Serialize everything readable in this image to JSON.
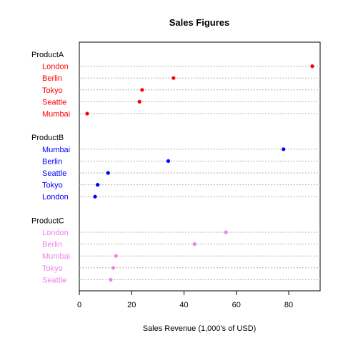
{
  "chart_data": {
    "type": "scatter",
    "subtype": "dotchart",
    "title": "Sales Figures",
    "xlabel": "Sales Revenue (1,000's of USD)",
    "ylabel": "",
    "xlim": [
      0,
      92
    ],
    "xticks": [
      0,
      20,
      40,
      60,
      80
    ],
    "grid": "dotted-horizontal",
    "groups": [
      {
        "name": "ProductA",
        "color": "#ff0000",
        "points": [
          {
            "label": "London",
            "value": 89
          },
          {
            "label": "Berlin",
            "value": 36
          },
          {
            "label": "Tokyo",
            "value": 24
          },
          {
            "label": "Seattle",
            "value": 23
          },
          {
            "label": "Mumbai",
            "value": 3
          }
        ]
      },
      {
        "name": "ProductB",
        "color": "#0000ff",
        "points": [
          {
            "label": "Mumbai",
            "value": 78
          },
          {
            "label": "Berlin",
            "value": 34
          },
          {
            "label": "Seattle",
            "value": 11
          },
          {
            "label": "Tokyo",
            "value": 7
          },
          {
            "label": "London",
            "value": 6
          }
        ]
      },
      {
        "name": "ProductC",
        "color": "#ee82ee",
        "points": [
          {
            "label": "London",
            "value": 56
          },
          {
            "label": "Berlin",
            "value": 44
          },
          {
            "label": "Mumbai",
            "value": 14
          },
          {
            "label": "Tokyo",
            "value": 13
          },
          {
            "label": "Seattle",
            "value": 12
          }
        ]
      }
    ]
  }
}
